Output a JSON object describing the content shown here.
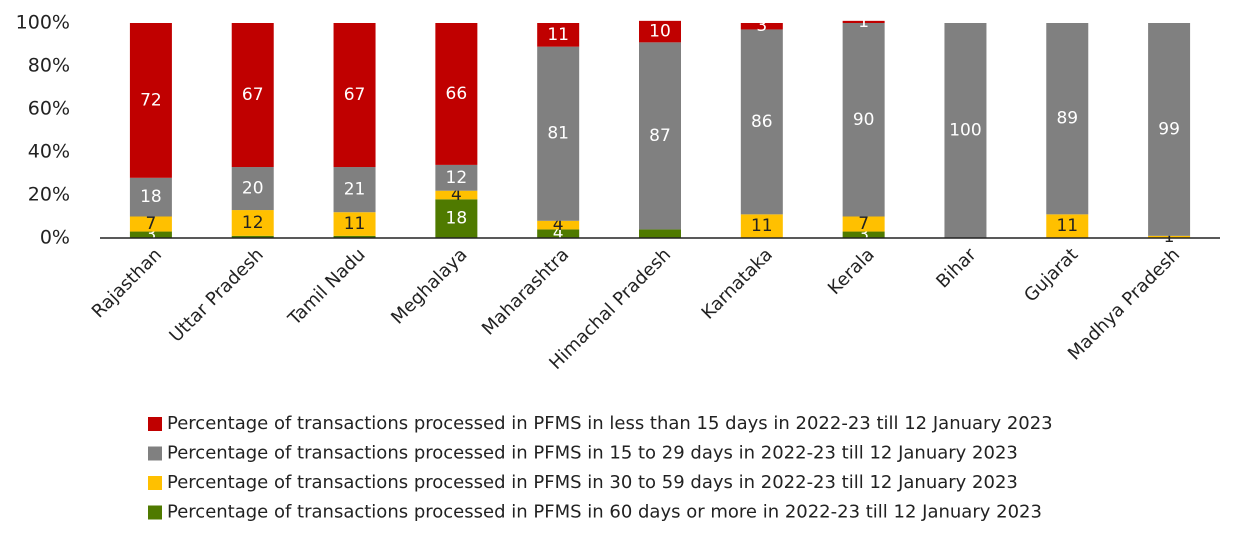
{
  "chart_data": {
    "type": "stacked_bar",
    "categories": [
      "Rajasthan",
      "Uttar Pradesh",
      "Tamil Nadu",
      "Meghalaya",
      "Maharashtra",
      "Himachal Pradesh",
      "Karnataka",
      "Kerala",
      "Bihar",
      "Gujarat",
      "Madhya Pradesh"
    ],
    "series": [
      {
        "name": "Percentage of transactions processed in PFMS in 60 days or more in 2022-23 till 12 January 2023",
        "color": "#4f7a00",
        "values": [
          3,
          1,
          1,
          18,
          4,
          4,
          0,
          3,
          0,
          0,
          0
        ],
        "value_labels": [
          "3",
          null,
          null,
          "18",
          "4",
          null,
          null,
          "3",
          null,
          null,
          null
        ]
      },
      {
        "name": "Percentage of transactions processed in PFMS in 30 to 59 days in 2022-23 till 12 January 2023",
        "color": "#ffc000",
        "values": [
          7,
          12,
          11,
          4,
          4,
          0,
          11,
          7,
          0,
          11,
          1
        ],
        "value_labels": [
          "7",
          "12",
          "11",
          "4",
          "4",
          null,
          "11",
          "7",
          null,
          "11",
          "1"
        ]
      },
      {
        "name": "Percentage of transactions processed in PFMS in 15 to 29 days in 2022-23 till 12 January 2023",
        "color": "#808080",
        "values": [
          18,
          20,
          21,
          12,
          81,
          87,
          86,
          90,
          100,
          89,
          99
        ],
        "value_labels": [
          "18",
          "20",
          "21",
          "12",
          "81",
          "87",
          "86",
          "90",
          "100",
          "89",
          "99"
        ]
      },
      {
        "name": "Percentage of transactions processed in PFMS in less than 15 days in 2022-23 till 12 January 2023",
        "color": "#c00000",
        "values": [
          72,
          67,
          67,
          66,
          11,
          10,
          3,
          1,
          0,
          0,
          0
        ],
        "value_labels": [
          "72",
          "67",
          "67",
          "66",
          "11",
          "10",
          "3",
          "1",
          null,
          null,
          null
        ]
      }
    ],
    "ylim": [
      0,
      100
    ],
    "yticks": [
      {
        "value": 0,
        "label": "0%"
      },
      {
        "value": 20,
        "label": "20%"
      },
      {
        "value": 40,
        "label": "40%"
      },
      {
        "value": 60,
        "label": "60%"
      },
      {
        "value": 80,
        "label": "80%"
      },
      {
        "value": 100,
        "label": "100%"
      }
    ]
  }
}
